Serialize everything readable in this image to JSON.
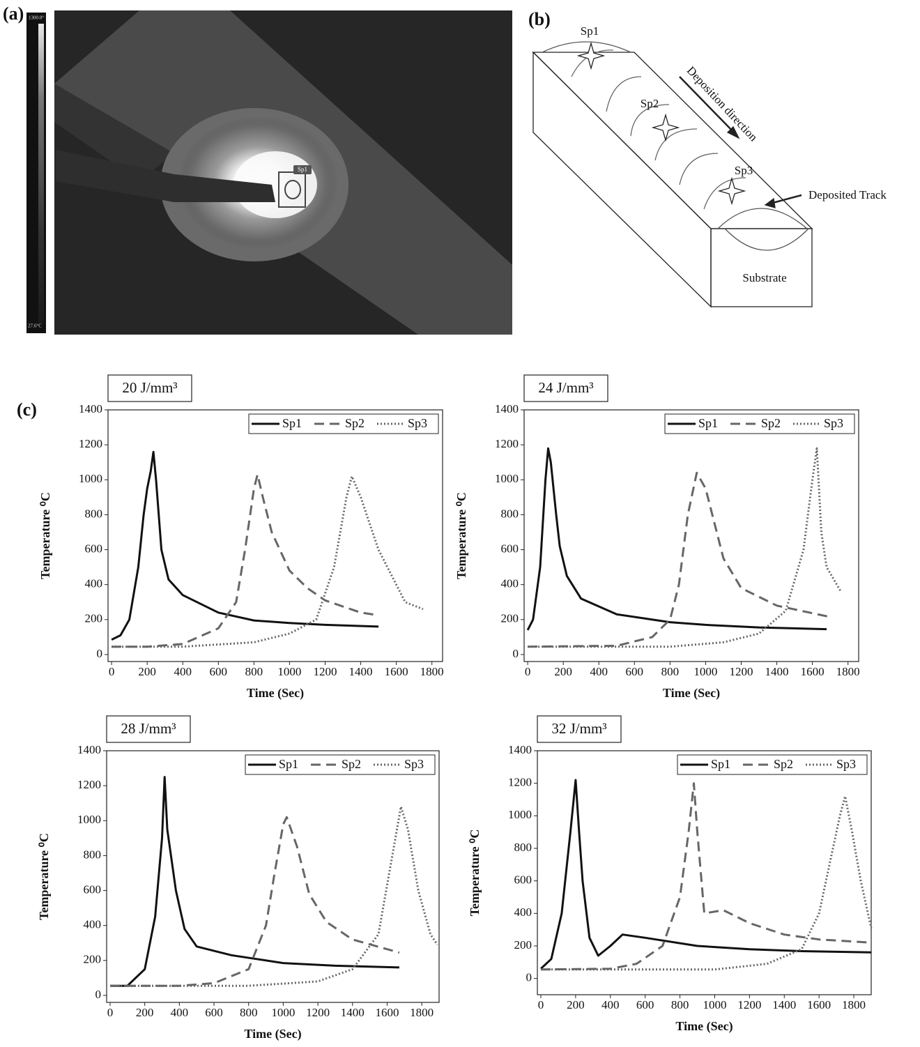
{
  "panel_a": {
    "label": "(a)",
    "scale_top": "1300.0°",
    "scale_bottom": "27.6°C",
    "spot": "Sp1"
  },
  "panel_b": {
    "label": "(b)",
    "spots": [
      "Sp1",
      "Sp2",
      "Sp3"
    ],
    "direction": "Deposition direction",
    "track": "Deposited Track",
    "substrate": "Substrate"
  },
  "panel_c": {
    "label": "(c)"
  },
  "chart_data": [
    {
      "type": "line",
      "title": "20 J/mm³",
      "xlabel": "Time (Sec)",
      "ylabel": "Temperature ⁰C",
      "xlim": [
        -20,
        1860
      ],
      "ylim": [
        -40,
        1400
      ],
      "xticks": [
        0,
        200,
        400,
        600,
        800,
        1000,
        1200,
        1400,
        1600,
        1800
      ],
      "yticks": [
        0,
        200,
        400,
        600,
        800,
        1000,
        1200,
        1400
      ],
      "legend": "upper right",
      "series": [
        {
          "name": "Sp1",
          "color": "#111111",
          "style": "solid",
          "x": [
            0,
            50,
            100,
            150,
            180,
            200,
            220,
            235,
            250,
            280,
            320,
            400,
            600,
            800,
            1000,
            1200,
            1500
          ],
          "values": [
            85,
            110,
            200,
            500,
            800,
            950,
            1050,
            1160,
            1000,
            600,
            430,
            340,
            240,
            195,
            180,
            170,
            160
          ]
        },
        {
          "name": "Sp2",
          "color": "#666666",
          "style": "dashed",
          "x": [
            0,
            200,
            400,
            600,
            700,
            750,
            800,
            820,
            850,
            900,
            1000,
            1100,
            1200,
            1400,
            1500
          ],
          "values": [
            45,
            45,
            60,
            150,
            300,
            600,
            950,
            1030,
            900,
            700,
            480,
            380,
            310,
            240,
            225
          ]
        },
        {
          "name": "Sp3",
          "color": "#666666",
          "style": "dotted",
          "x": [
            0,
            400,
            800,
            1000,
            1150,
            1250,
            1320,
            1350,
            1400,
            1450,
            1500,
            1600,
            1650,
            1750
          ],
          "values": [
            45,
            45,
            70,
            120,
            200,
            500,
            900,
            1020,
            900,
            750,
            600,
            400,
            300,
            260
          ]
        }
      ]
    },
    {
      "type": "line",
      "title": "24 J/mm³",
      "xlabel": "Time (Sec)",
      "ylabel": "Temperature ⁰C",
      "xlim": [
        -20,
        1860
      ],
      "ylim": [
        -40,
        1400
      ],
      "xticks": [
        0,
        200,
        400,
        600,
        800,
        1000,
        1200,
        1400,
        1600,
        1800
      ],
      "yticks": [
        0,
        200,
        400,
        600,
        800,
        1000,
        1200,
        1400
      ],
      "legend": "upper right",
      "series": [
        {
          "name": "Sp1",
          "color": "#111111",
          "style": "solid",
          "x": [
            0,
            30,
            70,
            100,
            115,
            130,
            160,
            180,
            220,
            300,
            500,
            800,
            1000,
            1300,
            1680
          ],
          "values": [
            140,
            200,
            500,
            1000,
            1180,
            1100,
            800,
            620,
            450,
            320,
            230,
            185,
            170,
            155,
            145
          ]
        },
        {
          "name": "Sp2",
          "color": "#666666",
          "style": "dashed",
          "x": [
            0,
            500,
            700,
            800,
            850,
            900,
            950,
            1000,
            1050,
            1100,
            1200,
            1400,
            1700
          ],
          "values": [
            45,
            50,
            100,
            200,
            400,
            800,
            1040,
            950,
            750,
            550,
            380,
            280,
            215
          ]
        },
        {
          "name": "Sp3",
          "color": "#666666",
          "style": "dotted",
          "x": [
            0,
            800,
            1100,
            1300,
            1450,
            1550,
            1600,
            1625,
            1650,
            1680,
            1760
          ],
          "values": [
            45,
            45,
            70,
            120,
            250,
            600,
            1000,
            1180,
            700,
            500,
            360
          ]
        }
      ]
    },
    {
      "type": "line",
      "title": "28 J/mm³",
      "xlabel": "Time (Sec)",
      "ylabel": "Temperature ⁰C",
      "xlim": [
        -20,
        1900
      ],
      "ylim": [
        -40,
        1400
      ],
      "xticks": [
        0,
        200,
        400,
        600,
        800,
        1000,
        1200,
        1400,
        1600,
        1800
      ],
      "yticks": [
        0,
        200,
        400,
        600,
        800,
        1000,
        1200,
        1400
      ],
      "legend": "upper right",
      "series": [
        {
          "name": "Sp1",
          "color": "#111111",
          "style": "solid",
          "x": [
            0,
            100,
            200,
            260,
            300,
            315,
            330,
            380,
            430,
            500,
            700,
            1000,
            1300,
            1670
          ],
          "values": [
            55,
            55,
            150,
            450,
            900,
            1250,
            950,
            600,
            380,
            280,
            230,
            185,
            170,
            160
          ]
        },
        {
          "name": "Sp2",
          "color": "#666666",
          "style": "dashed",
          "x": [
            0,
            400,
            600,
            800,
            900,
            950,
            1000,
            1020,
            1080,
            1150,
            1250,
            1400,
            1670
          ],
          "values": [
            55,
            55,
            70,
            150,
            400,
            700,
            980,
            1020,
            850,
            580,
            420,
            320,
            245
          ]
        },
        {
          "name": "Sp3",
          "color": "#666666",
          "style": "dotted",
          "x": [
            0,
            800,
            1200,
            1400,
            1550,
            1630,
            1680,
            1720,
            1780,
            1850,
            1890
          ],
          "values": [
            55,
            55,
            80,
            150,
            350,
            800,
            1080,
            950,
            600,
            350,
            290
          ]
        }
      ]
    },
    {
      "type": "line",
      "title": "32 J/mm³",
      "xlabel": "Time (Sec)",
      "ylabel": "Temperature ⁰C",
      "xlim": [
        -20,
        1900
      ],
      "ylim": [
        -100,
        1400
      ],
      "xticks": [
        0,
        200,
        400,
        600,
        800,
        1000,
        1200,
        1400,
        1600,
        1800
      ],
      "yticks": [
        0,
        200,
        400,
        600,
        800,
        1000,
        1200,
        1400
      ],
      "legend": "upper right",
      "series": [
        {
          "name": "Sp1",
          "color": "#111111",
          "style": "solid",
          "x": [
            0,
            60,
            120,
            170,
            200,
            220,
            240,
            280,
            330,
            400,
            470,
            600,
            900,
            1200,
            1500,
            1900
          ],
          "values": [
            60,
            120,
            400,
            900,
            1220,
            900,
            600,
            250,
            140,
            200,
            270,
            250,
            200,
            180,
            168,
            160
          ]
        },
        {
          "name": "Sp2",
          "color": "#666666",
          "style": "dashed",
          "x": [
            0,
            400,
            550,
            700,
            800,
            850,
            880,
            900,
            940,
            1050,
            1200,
            1400,
            1600,
            1900
          ],
          "values": [
            55,
            60,
            90,
            200,
            500,
            900,
            1200,
            900,
            400,
            420,
            340,
            270,
            240,
            220
          ]
        },
        {
          "name": "Sp3",
          "color": "#666666",
          "style": "dotted",
          "x": [
            0,
            1000,
            1300,
            1500,
            1600,
            1660,
            1720,
            1750,
            1790,
            1840,
            1900
          ],
          "values": [
            55,
            55,
            90,
            180,
            400,
            700,
            1000,
            1120,
            900,
            600,
            310
          ]
        }
      ]
    }
  ]
}
